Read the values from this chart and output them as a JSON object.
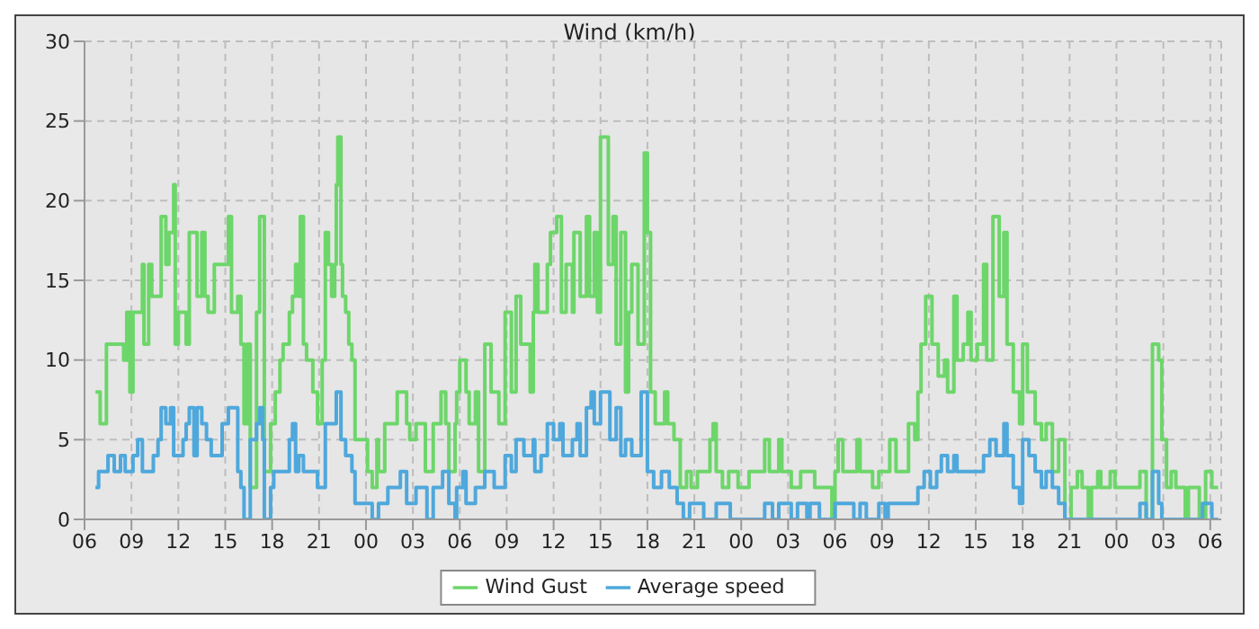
{
  "chart_data": {
    "type": "step",
    "title": "Wind (km/h)",
    "xlim": [
      6,
      78.7
    ],
    "ylim": [
      0,
      30
    ],
    "xticks": [
      {
        "value": 6,
        "label": "06"
      },
      {
        "value": 9,
        "label": "09"
      },
      {
        "value": 12,
        "label": "12"
      },
      {
        "value": 15,
        "label": "15"
      },
      {
        "value": 18,
        "label": "18"
      },
      {
        "value": 21,
        "label": "21"
      },
      {
        "value": 24,
        "label": "00"
      },
      {
        "value": 27,
        "label": "03"
      },
      {
        "value": 30,
        "label": "06"
      },
      {
        "value": 33,
        "label": "09"
      },
      {
        "value": 36,
        "label": "12"
      },
      {
        "value": 39,
        "label": "15"
      },
      {
        "value": 42,
        "label": "18"
      },
      {
        "value": 45,
        "label": "21"
      },
      {
        "value": 48,
        "label": "00"
      },
      {
        "value": 51,
        "label": "03"
      },
      {
        "value": 54,
        "label": "06"
      },
      {
        "value": 57,
        "label": "09"
      },
      {
        "value": 60,
        "label": "12"
      },
      {
        "value": 63,
        "label": "15"
      },
      {
        "value": 66,
        "label": "18"
      },
      {
        "value": 69,
        "label": "21"
      },
      {
        "value": 72,
        "label": "00"
      },
      {
        "value": 75,
        "label": "03"
      },
      {
        "value": 78,
        "label": "06"
      }
    ],
    "yticks": [
      0,
      5,
      10,
      15,
      20,
      25,
      30
    ],
    "grid": true,
    "legend": "bottom",
    "line_style": "solid",
    "marker": "none",
    "series": [
      {
        "name": "Wind Gust",
        "color": "#6dd66a",
        "x": [
          6.7,
          7.0,
          7.4,
          8.3,
          8.5,
          8.7,
          8.9,
          9.1,
          9.7,
          9.8,
          10.1,
          10.3,
          10.9,
          11.2,
          11.4,
          11.7,
          11.8,
          12.0,
          12.5,
          12.7,
          13.2,
          13.5,
          13.7,
          13.9,
          14.3,
          15.2,
          15.4,
          15.8,
          16.0,
          16.2,
          16.4,
          16.6,
          17.0,
          17.2,
          17.5,
          17.9,
          18.2,
          18.5,
          18.7,
          19.1,
          19.3,
          19.5,
          19.7,
          19.8,
          20.0,
          20.2,
          20.6,
          20.9,
          21.2,
          21.4,
          21.6,
          21.8,
          22.0,
          22.1,
          22.2,
          22.4,
          22.5,
          22.7,
          22.9,
          23.1,
          23.3,
          24.1,
          24.4,
          24.7,
          24.8,
          25.2,
          26.0,
          26.6,
          26.8,
          27.2,
          27.8,
          28.3,
          28.8,
          29.1,
          29.3,
          29.7,
          29.8,
          30.0,
          30.4,
          30.6,
          31.0,
          31.2,
          31.6,
          32.0,
          32.5,
          32.9,
          33.3,
          33.6,
          33.9,
          34.5,
          34.7,
          34.8,
          35.0,
          35.6,
          35.8,
          36.2,
          36.5,
          36.8,
          37.2,
          37.3,
          37.7,
          38.1,
          38.3,
          38.6,
          38.8,
          39.0,
          39.5,
          39.8,
          40.0,
          40.3,
          40.6,
          40.8,
          41.0,
          41.4,
          41.8,
          42.0,
          42.2,
          42.5,
          43.1,
          43.3,
          43.7,
          44.1,
          44.5,
          44.8,
          45.2,
          46.0,
          46.2,
          46.4,
          46.8,
          47.2,
          47.8,
          48.5,
          49.5,
          49.8,
          50.4,
          50.6,
          51.2,
          51.8,
          52.7,
          53.8,
          54.0,
          54.2,
          54.5,
          55.4,
          55.6,
          56.4,
          56.8,
          57.5,
          57.9,
          58.7,
          59.1,
          59.3,
          59.5,
          59.8,
          60.2,
          60.6,
          61.0,
          61.2,
          61.6,
          61.8,
          62.2,
          62.5,
          62.7,
          63.1,
          63.5,
          63.7,
          64.1,
          64.5,
          64.8,
          65.0,
          65.4,
          65.8,
          66.0,
          66.3,
          66.8,
          67.2,
          67.5,
          67.9,
          68.3,
          68.7,
          69.1,
          69.5,
          69.8,
          70.2,
          70.4,
          70.8,
          71.0,
          71.6,
          71.9,
          73.5,
          73.9,
          74.3,
          74.7,
          74.9,
          75.2,
          75.5,
          75.8,
          76.4,
          76.6,
          77.3,
          77.7,
          78.1,
          78.5
        ],
        "values": [
          8,
          6,
          11,
          11,
          10,
          13,
          8,
          13,
          16,
          11,
          16,
          14,
          19,
          16,
          18,
          21,
          11,
          13,
          11,
          18,
          14,
          18,
          14,
          13,
          16,
          19,
          13,
          14,
          11,
          6,
          11,
          2,
          13,
          19,
          3,
          6,
          8,
          10,
          11,
          13,
          14,
          16,
          14,
          19,
          11,
          10,
          8,
          6,
          10,
          18,
          16,
          14,
          16,
          21,
          24,
          16,
          14,
          13,
          11,
          10,
          5,
          3,
          2,
          5,
          3,
          6,
          8,
          6,
          5,
          6,
          3,
          6,
          8,
          6,
          3,
          6,
          8,
          10,
          8,
          6,
          8,
          3,
          11,
          8,
          6,
          13,
          8,
          14,
          11,
          8,
          13,
          16,
          13,
          16,
          18,
          19,
          13,
          16,
          13,
          18,
          14,
          19,
          14,
          18,
          13,
          24,
          16,
          19,
          11,
          18,
          8,
          13,
          16,
          11,
          23,
          18,
          8,
          6,
          8,
          6,
          5,
          2,
          3,
          2,
          3,
          5,
          6,
          3,
          2,
          3,
          2,
          3,
          5,
          3,
          5,
          3,
          2,
          3,
          2,
          0,
          3,
          5,
          3,
          5,
          3,
          2,
          3,
          5,
          3,
          6,
          5,
          8,
          11,
          14,
          11,
          9,
          10,
          8,
          14,
          10,
          11,
          13,
          10,
          11,
          16,
          10,
          19,
          14,
          18,
          11,
          8,
          6,
          11,
          8,
          6,
          5,
          6,
          3,
          5,
          0,
          2,
          3,
          2,
          0,
          2,
          3,
          2,
          3,
          2,
          3,
          0,
          11,
          10,
          5,
          2,
          3,
          2,
          0,
          2,
          0,
          3,
          2,
          2
        ]
      },
      {
        "name": "Average speed",
        "color": "#4ea8dc",
        "x": [
          6.7,
          6.9,
          7.5,
          7.9,
          8.3,
          8.6,
          9.1,
          9.4,
          9.7,
          10.4,
          10.7,
          10.9,
          11.2,
          11.5,
          11.7,
          12.3,
          12.5,
          12.7,
          13.0,
          13.2,
          13.5,
          13.8,
          14.1,
          14.8,
          15.2,
          15.8,
          16.0,
          16.2,
          16.6,
          17.0,
          17.2,
          17.4,
          17.5,
          17.9,
          18.1,
          19.1,
          19.3,
          19.5,
          19.7,
          20.0,
          20.9,
          21.4,
          22.1,
          22.4,
          22.7,
          23.1,
          23.3,
          24.4,
          24.8,
          25.4,
          26.2,
          26.6,
          27.2,
          27.9,
          28.3,
          28.9,
          29.3,
          29.7,
          29.8,
          30.2,
          30.4,
          31.0,
          31.6,
          32.2,
          32.9,
          33.3,
          33.6,
          34.1,
          34.7,
          34.8,
          35.2,
          35.6,
          36.0,
          36.4,
          36.6,
          37.2,
          37.5,
          37.7,
          38.1,
          38.4,
          38.6,
          39.0,
          39.6,
          40.0,
          40.3,
          40.6,
          41.0,
          41.6,
          42.0,
          42.4,
          42.9,
          43.4,
          43.9,
          44.3,
          44.7,
          45.6,
          46.4,
          47.3,
          49.5,
          50.0,
          50.4,
          51.2,
          51.6,
          52.2,
          52.4,
          53.0,
          54.0,
          55.2,
          55.6,
          56.0,
          56.8,
          57.2,
          57.4,
          59.3,
          59.7,
          60.1,
          60.5,
          60.8,
          61.2,
          61.6,
          61.8,
          63.5,
          63.9,
          64.3,
          64.8,
          65.0,
          65.4,
          65.8,
          66.0,
          66.4,
          66.8,
          67.2,
          67.5,
          67.9,
          68.3,
          68.7,
          73.5,
          73.9,
          74.3,
          74.7,
          74.9,
          77.5,
          78.1,
          78.5
        ],
        "values": [
          2,
          3,
          4,
          3,
          4,
          3,
          4,
          5,
          3,
          4,
          5,
          7,
          6,
          7,
          4,
          5,
          6,
          7,
          4,
          7,
          6,
          5,
          4,
          6,
          7,
          3,
          2,
          0,
          5,
          6,
          7,
          5,
          0,
          2,
          3,
          5,
          6,
          3,
          4,
          3,
          2,
          6,
          8,
          5,
          4,
          3,
          1,
          0,
          1,
          2,
          3,
          1,
          2,
          0,
          2,
          3,
          1,
          0,
          2,
          3,
          1,
          2,
          3,
          2,
          4,
          3,
          5,
          4,
          5,
          3,
          4,
          6,
          5,
          6,
          4,
          5,
          6,
          4,
          7,
          8,
          6,
          8,
          5,
          7,
          4,
          5,
          4,
          8,
          3,
          2,
          3,
          2,
          1,
          0,
          1,
          0,
          1,
          0,
          1,
          0,
          1,
          0,
          1,
          0,
          1,
          0,
          1,
          0,
          1,
          0,
          1,
          0,
          1,
          2,
          3,
          2,
          3,
          4,
          3,
          4,
          3,
          4,
          5,
          4,
          6,
          4,
          2,
          1,
          5,
          4,
          3,
          2,
          3,
          2,
          1,
          0,
          1,
          0,
          3,
          1,
          0,
          1,
          0,
          0
        ]
      }
    ]
  }
}
